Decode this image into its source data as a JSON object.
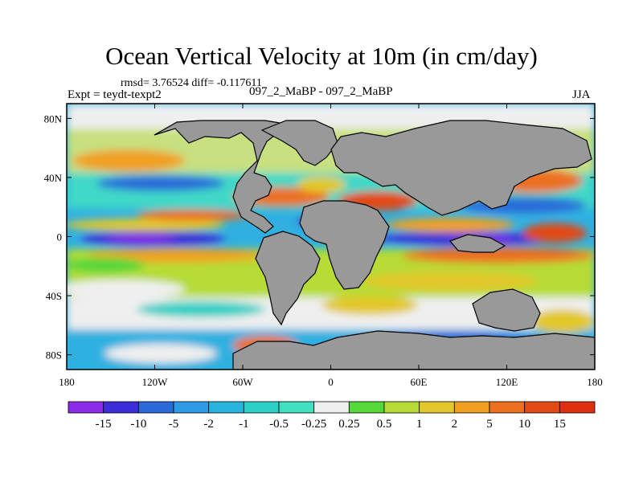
{
  "chart_data": {
    "type": "heatmap",
    "title": "Ocean Vertical Velocity at 10m (in cm/day)",
    "stats_text": "rmsd= 3.76524 diff= -0.117611",
    "left_label": "Expt = teydt-texpt2",
    "center_label": "097_2_MaBP - 097_2_MaBP",
    "right_label": "JJA",
    "x_ticks": [
      "180",
      "120W",
      "60W",
      "0",
      "60E",
      "120E",
      "180"
    ],
    "x_tick_values": [
      -180,
      -120,
      -60,
      0,
      60,
      120,
      180
    ],
    "y_ticks": [
      "80N",
      "40N",
      "0",
      "40S",
      "80S"
    ],
    "y_tick_values": [
      80,
      40,
      0,
      -40,
      -80
    ],
    "xlim": [
      -180,
      180
    ],
    "ylim": [
      -90,
      90
    ],
    "colorbar_labels": [
      "-15",
      "-10",
      "-5",
      "-2",
      "-1",
      "-0.5",
      "-0.25",
      "0.25",
      "0.5",
      "1",
      "2",
      "5",
      "10",
      "15"
    ],
    "colorbar_colors": [
      "#8a2be8",
      "#3a2fd6",
      "#2a6ad8",
      "#2f9ae6",
      "#27b5e0",
      "#2cd0c4",
      "#40e0c0",
      "#efefef",
      "#55d83a",
      "#b6dc35",
      "#e2c82a",
      "#f0a020",
      "#ec7020",
      "#e24a18",
      "#de3010"
    ],
    "land_color": "#999999"
  }
}
